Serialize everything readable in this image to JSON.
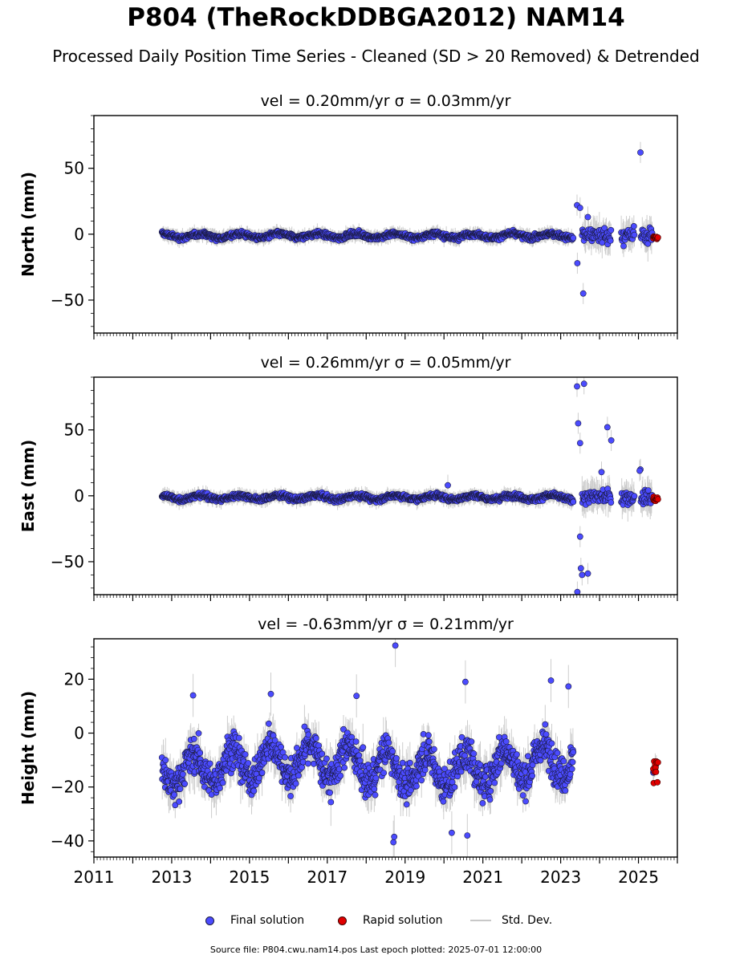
{
  "header": {
    "title": "P804 (TheRockDDBGA2012) NAM14",
    "subtitle": "Processed Daily Position Time Series - Cleaned (SD > 20 Removed) & Detrended"
  },
  "colors": {
    "final": "#4b4bff",
    "rapid": "#e00000",
    "stddev": "#c8c8c8",
    "edge": "#1a1a40"
  },
  "chart_data": {
    "type": "scatter",
    "xlim": [
      2011,
      2026
    ],
    "x_ticks": [
      2011,
      2013,
      2015,
      2017,
      2019,
      2021,
      2023,
      2025
    ],
    "x_tick_labels": [
      "2011",
      "2013",
      "2015",
      "2017",
      "2019",
      "2021",
      "2023",
      "2025"
    ],
    "final_range": [
      2012.75,
      2023.33
    ],
    "gap_range": [
      2023.33,
      2023.55
    ],
    "dense_gap": [
      2024.9,
      2025.05
    ],
    "rapid_range": [
      2025.38,
      2025.5
    ],
    "final_start_sparse_until": 2025.36,
    "panels": [
      {
        "id": "north",
        "title": "vel = 0.20mm/yr   σ = 0.03mm/yr",
        "ylabel": "North (mm)",
        "ylim": [
          -75,
          90
        ],
        "y_ticks": [
          -50,
          0,
          50
        ],
        "y_tick_labels": [
          "−50",
          "0",
          "50"
        ],
        "base_scatter": 1.8,
        "late_scatter": 6,
        "outliers": [
          [
            2023.42,
            22
          ],
          [
            2023.5,
            20
          ],
          [
            2023.43,
            -22
          ],
          [
            2023.58,
            -45
          ],
          [
            2023.7,
            13
          ],
          [
            2025.05,
            62
          ]
        ]
      },
      {
        "id": "east",
        "title": "vel = 0.26mm/yr   σ = 0.05mm/yr",
        "ylabel": "East (mm)",
        "ylim": [
          -75,
          90
        ],
        "y_ticks": [
          -50,
          0,
          50
        ],
        "y_tick_labels": [
          "−50",
          "0",
          "50"
        ],
        "base_scatter": 1.8,
        "late_scatter": 6,
        "outliers": [
          [
            2023.42,
            83
          ],
          [
            2023.6,
            85
          ],
          [
            2023.45,
            55
          ],
          [
            2023.5,
            40
          ],
          [
            2023.5,
            -31
          ],
          [
            2023.52,
            -55
          ],
          [
            2023.55,
            -60
          ],
          [
            2023.7,
            -59
          ],
          [
            2023.43,
            -73
          ],
          [
            2024.2,
            52
          ],
          [
            2024.3,
            42
          ],
          [
            2024.05,
            18
          ],
          [
            2025.05,
            20
          ],
          [
            2025.03,
            19
          ],
          [
            2020.1,
            8
          ]
        ]
      },
      {
        "id": "height",
        "title": "vel = -0.63mm/yr   σ = 0.21mm/yr",
        "ylabel": "Height (mm)",
        "ylim": [
          -46,
          35
        ],
        "y_ticks": [
          -40,
          -20,
          0,
          20
        ],
        "y_tick_labels": [
          "−40",
          "−20",
          "0",
          "20"
        ],
        "base_scatter": 6,
        "late_scatter": 4,
        "outliers": [
          [
            2018.75,
            32.5
          ],
          [
            2020.55,
            19
          ],
          [
            2022.75,
            19.5
          ],
          [
            2023.2,
            17.3
          ],
          [
            2015.55,
            14.5
          ],
          [
            2017.75,
            13.8
          ],
          [
            2013.55,
            14
          ],
          [
            2018.7,
            -40.5
          ],
          [
            2018.72,
            -38.5
          ],
          [
            2020.2,
            -37
          ],
          [
            2020.6,
            -38
          ]
        ]
      }
    ],
    "legend": [
      {
        "name": "Final solution",
        "kind": "final"
      },
      {
        "name": "Rapid solution",
        "kind": "rapid"
      },
      {
        "name": "Std. Dev.",
        "kind": "stddev"
      }
    ]
  },
  "footer": {
    "source": "Source file: P804.cwu.nam14.pos  Last epoch plotted: 2025-07-01 12:00:00"
  }
}
